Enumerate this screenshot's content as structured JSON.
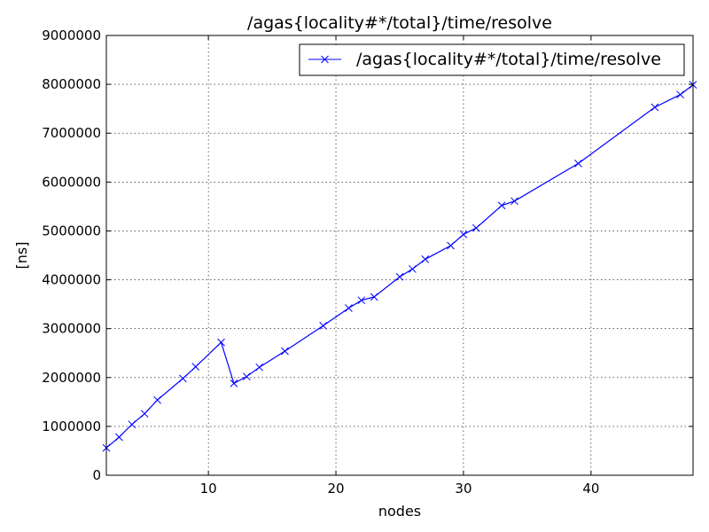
{
  "chart_data": {
    "type": "line",
    "title": "/agas{locality#*/total}/time/resolve",
    "xlabel": "nodes",
    "ylabel": "[ns]",
    "xlim": [
      2,
      48
    ],
    "ylim": [
      0,
      9000000
    ],
    "xticks": [
      10,
      20,
      30,
      40
    ],
    "yticks": [
      0,
      1000000,
      2000000,
      3000000,
      4000000,
      5000000,
      6000000,
      7000000,
      8000000,
      9000000
    ],
    "grid": true,
    "legend_position": "top-right",
    "series": [
      {
        "name": "/agas{locality#*/total}/time/resolve",
        "color": "#0000ff",
        "marker": "x",
        "x": [
          2,
          3,
          4,
          5,
          6,
          8,
          9,
          11,
          12,
          13,
          14,
          16,
          19,
          21,
          22,
          23,
          25,
          26,
          27,
          29,
          30,
          31,
          33,
          34,
          39,
          45,
          47,
          48
        ],
        "y": [
          560000,
          780000,
          1040000,
          1260000,
          1540000,
          1980000,
          2220000,
          2720000,
          1880000,
          2020000,
          2210000,
          2540000,
          3060000,
          3420000,
          3580000,
          3650000,
          4060000,
          4220000,
          4420000,
          4700000,
          4930000,
          5060000,
          5520000,
          5610000,
          6380000,
          7530000,
          7790000,
          7990000
        ]
      }
    ]
  }
}
